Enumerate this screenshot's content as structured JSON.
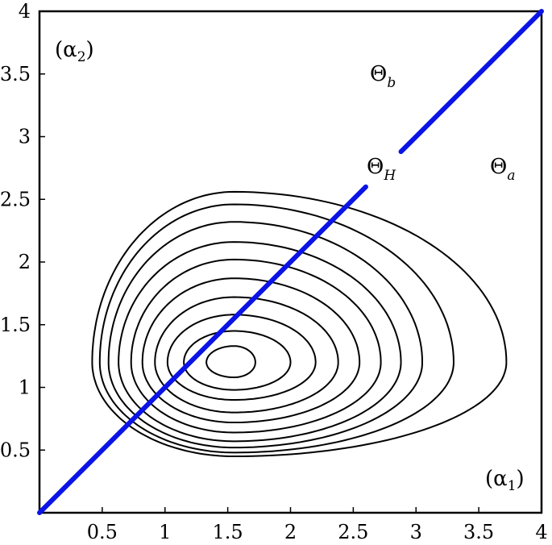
{
  "chart_data": {
    "type": "contour",
    "xlim": [
      0,
      4
    ],
    "ylim": [
      0,
      4
    ],
    "x_ticks": [
      0.5,
      1,
      1.5,
      2,
      2.5,
      3,
      3.5,
      4
    ],
    "y_ticks": [
      0.5,
      1,
      1.5,
      2,
      2.5,
      3,
      3.5,
      4
    ],
    "x_tick_labels": [
      "0.5",
      "1",
      "1.5",
      "2",
      "2.5",
      "3",
      "3.5",
      "4"
    ],
    "y_tick_labels": [
      "0.5",
      "1",
      "1.5",
      "2",
      "2.5",
      "3",
      "3.5",
      "4"
    ],
    "grid": false,
    "contour_center": [
      1.55,
      1.2
    ],
    "contour_levels": [
      {
        "left": 1.33,
        "right": 1.72,
        "bottom": 1.08,
        "top": 1.33
      },
      {
        "left": 1.15,
        "right": 2.0,
        "bottom": 0.98,
        "top": 1.45
      },
      {
        "left": 1.02,
        "right": 2.2,
        "bottom": 0.9,
        "top": 1.58
      },
      {
        "left": 0.92,
        "right": 2.38,
        "bottom": 0.8,
        "top": 1.72
      },
      {
        "left": 0.82,
        "right": 2.55,
        "bottom": 0.72,
        "top": 1.87
      },
      {
        "left": 0.73,
        "right": 2.72,
        "bottom": 0.64,
        "top": 2.02
      },
      {
        "left": 0.63,
        "right": 2.88,
        "bottom": 0.57,
        "top": 2.16
      },
      {
        "left": 0.55,
        "right": 3.05,
        "bottom": 0.52,
        "top": 2.32
      },
      {
        "left": 0.48,
        "right": 3.3,
        "bottom": 0.48,
        "top": 2.46
      },
      {
        "left": 0.42,
        "right": 3.72,
        "bottom": 0.45,
        "top": 2.56
      }
    ],
    "diagonal_line": {
      "color": "#0a14e6",
      "segments": [
        {
          "x": [
            0.0,
            2.6
          ],
          "y": [
            0.0,
            2.6
          ]
        },
        {
          "x": [
            2.88,
            4.0
          ],
          "y": [
            2.88,
            4.0
          ]
        }
      ]
    },
    "annotations": {
      "alpha2": {
        "base": "(α",
        "sub": "2",
        "end": ")"
      },
      "alpha1": {
        "base": "(α",
        "sub": "1",
        "end": ")"
      },
      "theta_b": {
        "base": "Θ",
        "sub": "b"
      },
      "theta_h": {
        "base": "Θ",
        "sub": "H"
      },
      "theta_a": {
        "base": "Θ",
        "sub": "a"
      }
    }
  }
}
